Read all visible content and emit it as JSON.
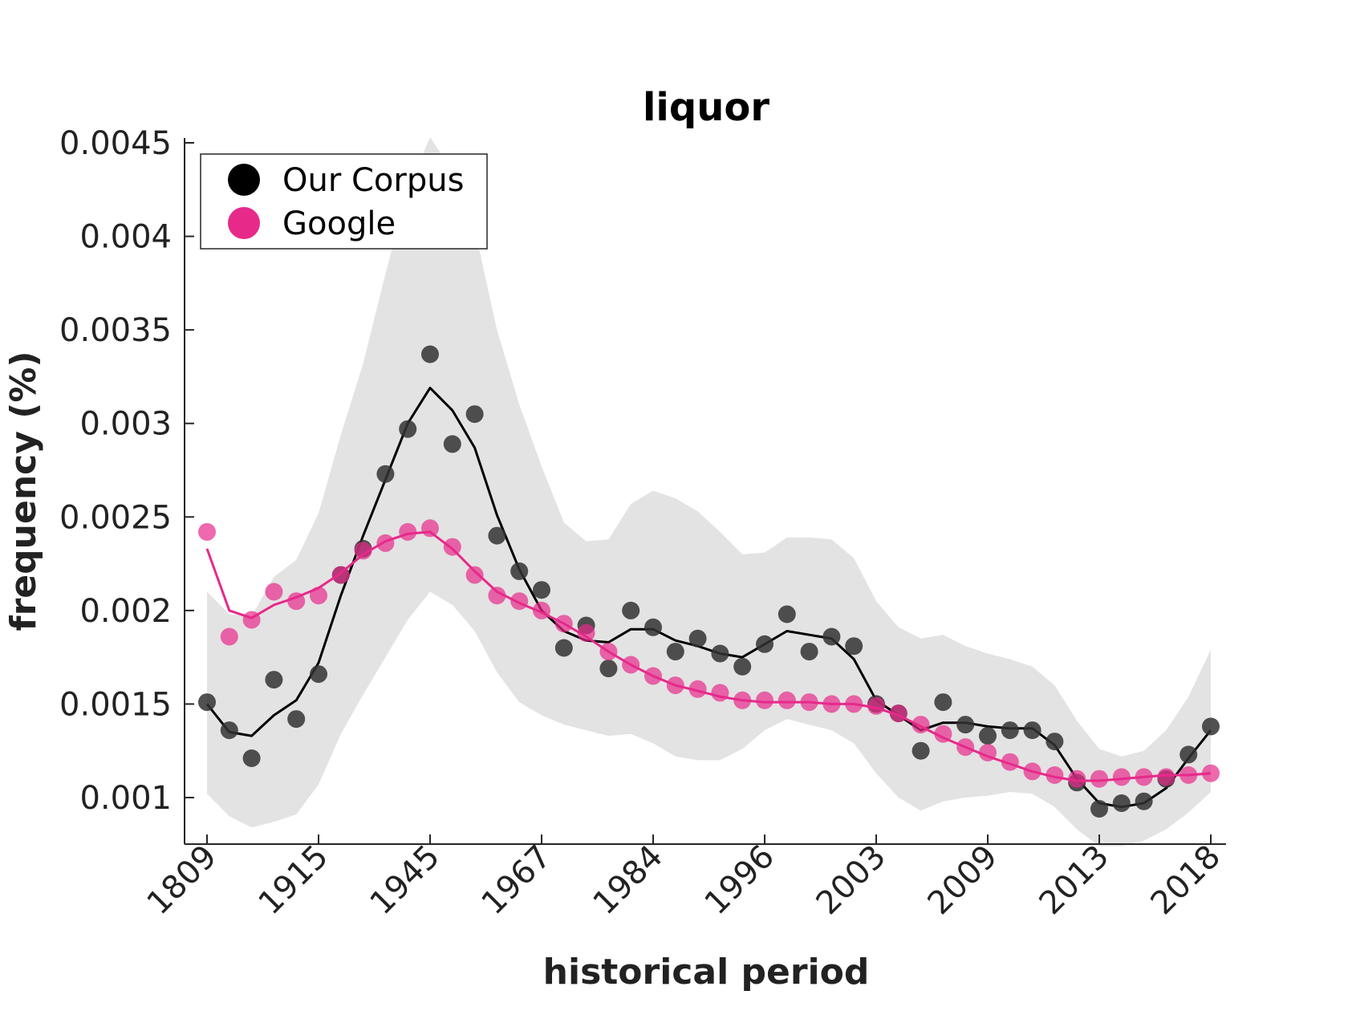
{
  "chart_data": {
    "type": "scatter",
    "title": "liquor",
    "xlabel": "historical period",
    "ylabel": "frequency (%)",
    "ylim": [
      0.00075,
      0.0045
    ],
    "y_ticks": [
      "0.0045",
      "0.004",
      "0.0035",
      "0.003",
      "0.0025",
      "0.002",
      "0.0015",
      "0.001"
    ],
    "y_tick_values": [
      0.0045,
      0.004,
      0.0035,
      0.003,
      0.0025,
      0.002,
      0.0015,
      0.001
    ],
    "x_tick_labels": [
      "1809",
      "1915",
      "1945",
      "1967",
      "1984",
      "1996",
      "2003",
      "2009",
      "2013",
      "2018"
    ],
    "x_tick_positions": [
      1,
      6,
      11,
      16,
      21,
      26,
      31,
      36,
      41,
      46
    ],
    "x": [
      1,
      2,
      3,
      4,
      5,
      6,
      7,
      8,
      9,
      10,
      11,
      12,
      13,
      14,
      15,
      16,
      17,
      18,
      19,
      20,
      21,
      22,
      23,
      24,
      25,
      26,
      27,
      28,
      29,
      30,
      31,
      32,
      33,
      34,
      35,
      36,
      37,
      38,
      39,
      40,
      41,
      42,
      43,
      44,
      45,
      46
    ],
    "legend": {
      "position": "top-left"
    },
    "grid": false,
    "series": [
      {
        "name": "Our Corpus",
        "color": "#000000",
        "points": [
          0.00151,
          0.00136,
          0.00121,
          0.00163,
          0.00142,
          0.00166,
          0.00219,
          0.00233,
          0.00273,
          0.00297,
          0.00337,
          0.00289,
          0.00305,
          0.0024,
          0.00221,
          0.00211,
          0.0018,
          0.00192,
          0.00169,
          0.002,
          0.00191,
          0.00178,
          0.00185,
          0.00177,
          0.0017,
          0.00182,
          0.00198,
          0.00178,
          0.00186,
          0.00181,
          0.0015,
          0.00145,
          0.00125,
          0.00151,
          0.00139,
          0.00133,
          0.00136,
          0.00136,
          0.0013,
          0.00108,
          0.00094,
          0.00097,
          0.00098,
          0.0011,
          0.00123,
          0.00138
        ],
        "smoothed": [
          0.0015,
          0.00135,
          0.00133,
          0.00144,
          0.00152,
          0.00172,
          0.00208,
          0.0024,
          0.0027,
          0.003,
          0.00319,
          0.00307,
          0.00287,
          0.00251,
          0.00222,
          0.002,
          0.00189,
          0.00184,
          0.00183,
          0.0019,
          0.0019,
          0.00184,
          0.00181,
          0.00177,
          0.00175,
          0.00182,
          0.00189,
          0.00187,
          0.00185,
          0.00174,
          0.00152,
          0.00144,
          0.00136,
          0.0014,
          0.0014,
          0.00138,
          0.00137,
          0.00137,
          0.00128,
          0.0011,
          0.00097,
          0.00095,
          0.00097,
          0.00105,
          0.00121,
          0.00136
        ],
        "band_upper": [
          0.0021,
          0.00198,
          0.00197,
          0.00218,
          0.00227,
          0.00252,
          0.00294,
          0.00332,
          0.0038,
          0.00425,
          0.00453,
          0.00435,
          0.00404,
          0.0035,
          0.0031,
          0.00277,
          0.00247,
          0.00237,
          0.00238,
          0.00257,
          0.00264,
          0.0026,
          0.00253,
          0.00242,
          0.0023,
          0.00231,
          0.00239,
          0.00239,
          0.00238,
          0.00228,
          0.00205,
          0.00191,
          0.00185,
          0.00187,
          0.00181,
          0.00177,
          0.00174,
          0.0017,
          0.0016,
          0.00141,
          0.00126,
          0.00122,
          0.00125,
          0.00136,
          0.00154,
          0.00179
        ],
        "band_lower": [
          0.00102,
          0.0009,
          0.00084,
          0.00087,
          0.00091,
          0.00107,
          0.00134,
          0.00155,
          0.00175,
          0.00195,
          0.0021,
          0.00203,
          0.00189,
          0.00167,
          0.00151,
          0.00144,
          0.00139,
          0.00136,
          0.00133,
          0.00134,
          0.00129,
          0.00122,
          0.0012,
          0.0012,
          0.00126,
          0.00136,
          0.00142,
          0.00139,
          0.00136,
          0.00129,
          0.00113,
          0.001,
          0.00093,
          0.00098,
          0.001,
          0.00101,
          0.00103,
          0.00102,
          0.00095,
          0.00083,
          0.00074,
          0.00074,
          0.00077,
          0.00083,
          0.00092,
          0.00103
        ]
      },
      {
        "name": "Google",
        "color": "#e7298a",
        "points": [
          0.00242,
          0.00186,
          0.00195,
          0.0021,
          0.00205,
          0.00208,
          0.00219,
          0.00232,
          0.00236,
          0.00242,
          0.00244,
          0.00234,
          0.00219,
          0.00208,
          0.00205,
          0.002,
          0.00193,
          0.00188,
          0.00178,
          0.00171,
          0.00165,
          0.0016,
          0.00158,
          0.00156,
          0.00152,
          0.00152,
          0.00152,
          0.00151,
          0.0015,
          0.0015,
          0.00149,
          0.00145,
          0.00139,
          0.00134,
          0.00127,
          0.00124,
          0.00119,
          0.00114,
          0.00112,
          0.0011,
          0.0011,
          0.00111,
          0.00111,
          0.00111,
          0.00112,
          0.00113
        ],
        "smoothed": [
          0.00233,
          0.002,
          0.00196,
          0.00203,
          0.00207,
          0.00212,
          0.0022,
          0.0023,
          0.00237,
          0.00241,
          0.00242,
          0.00233,
          0.00221,
          0.0021,
          0.00204,
          0.00199,
          0.00193,
          0.00186,
          0.00178,
          0.00171,
          0.00165,
          0.0016,
          0.00157,
          0.00154,
          0.00152,
          0.00151,
          0.00151,
          0.00151,
          0.0015,
          0.0015,
          0.00148,
          0.00144,
          0.00138,
          0.00132,
          0.00127,
          0.00122,
          0.00118,
          0.00114,
          0.00111,
          0.00109,
          0.00109,
          0.0011,
          0.00111,
          0.00112,
          0.00112,
          0.00113
        ]
      }
    ]
  }
}
